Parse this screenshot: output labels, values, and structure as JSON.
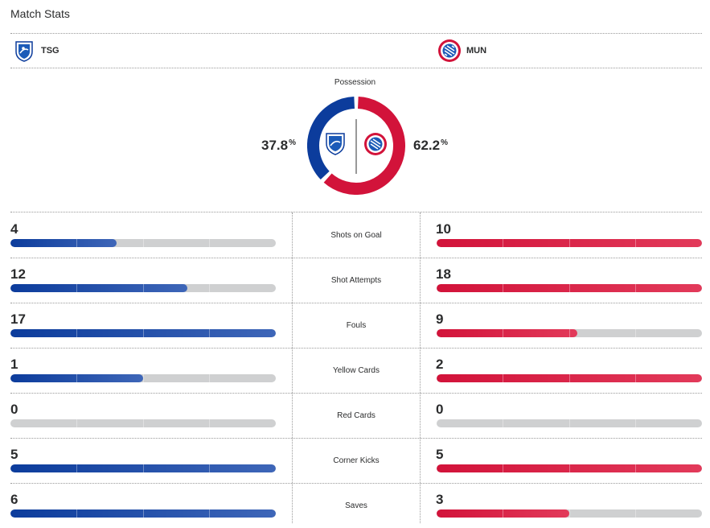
{
  "title": "Match Stats",
  "teams": {
    "home": {
      "abbr": "TSG",
      "color": "#0c3c9c",
      "logo_icon": "hoffenheim-crest-icon"
    },
    "away": {
      "abbr": "MUN",
      "color": "#d2133a",
      "logo_icon": "bayern-crest-icon"
    }
  },
  "possession": {
    "label": "Possession",
    "home_value": "37.8",
    "away_value": "62.2",
    "unit": "%",
    "home_pct": 37.8,
    "away_pct": 62.2
  },
  "stats": [
    {
      "label": "Shots on Goal",
      "home": "4",
      "away": "10"
    },
    {
      "label": "Shot Attempts",
      "home": "12",
      "away": "18"
    },
    {
      "label": "Fouls",
      "home": "17",
      "away": "9"
    },
    {
      "label": "Yellow Cards",
      "home": "1",
      "away": "2"
    },
    {
      "label": "Red Cards",
      "home": "0",
      "away": "0"
    },
    {
      "label": "Corner Kicks",
      "home": "5",
      "away": "5"
    },
    {
      "label": "Saves",
      "home": "6",
      "away": "3"
    }
  ]
}
